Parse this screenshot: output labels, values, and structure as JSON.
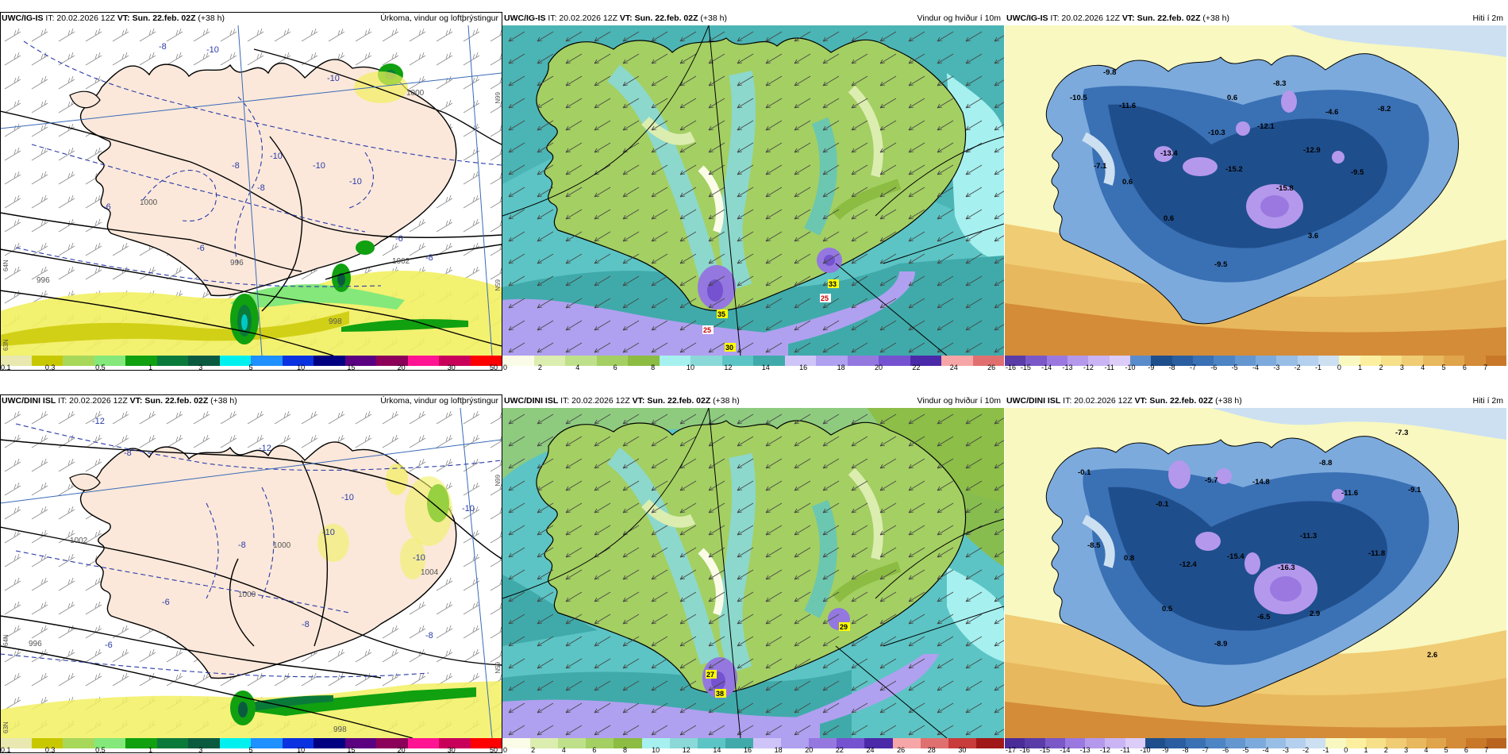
{
  "panels": [
    {
      "id": "p1",
      "left": "IG-IS",
      "type": "precip",
      "header": {
        "model": "UWC/IG-IS",
        "it": " IT: 20.02.2026 12Z ",
        "vt": "VT: Sun. 22.feb. 02Z",
        "lead": " (+38 h)",
        "title": "Úrkoma, vindur og loftþrýstingur"
      },
      "colorbar": {
        "colors": [
          "#e8e8b0",
          "#c8c800",
          "#a8d85a",
          "#84e87a",
          "#10a010",
          "#0a7a3a",
          "#0a5a40",
          "#00f0f0",
          "#1e90ff",
          "#0a32e0",
          "#000080",
          "#5a0080",
          "#8c005a",
          "#ff1493",
          "#c8005a",
          "#ff0000"
        ],
        "ticks": [
          "0.1",
          "0.3",
          "0.5",
          "1",
          "3",
          "5",
          "10",
          "15",
          "20",
          "30",
          "50"
        ],
        "tick_index": [
          0,
          1.5,
          3,
          4.5,
          6,
          7.5,
          9,
          10.5,
          12,
          13.5,
          15
        ]
      },
      "isobar_labels": [
        "1000",
        "996",
        "1002",
        "1000",
        "996",
        "998"
      ],
      "temp_labels": [
        "-8",
        "-10",
        "-10",
        "-6",
        "-8",
        "-10",
        "-10",
        "-8",
        "-6",
        "-8",
        "-10",
        "-6"
      ],
      "edge_labels": [
        "66N",
        "65N",
        "63N",
        "64N"
      ]
    },
    {
      "id": "p2",
      "type": "wind",
      "header": {
        "model": "UWC/IG-IS",
        "it": " IT: 20.02.2026 12Z ",
        "vt": "VT: Sun. 22.feb. 02Z",
        "lead": " (+38 h)",
        "title": "Vindur og hviður í 10m"
      },
      "colorbar": {
        "colors": [
          "#fbfce8",
          "#dcedb0",
          "#bfe08a",
          "#a4cf62",
          "#8cbc42",
          "#a6f0f0",
          "#8ad8d8",
          "#5cc4c4",
          "#40aaaa",
          "#cfc4f8",
          "#b0a0f0",
          "#9478e0",
          "#7452d0",
          "#4a2aa8",
          "#f6a6a6",
          "#e07070"
        ],
        "ticks": [
          "0",
          "2",
          "4",
          "6",
          "8",
          "10",
          "12",
          "14",
          "16",
          "18",
          "20",
          "22",
          "24",
          "26"
        ],
        "tick_index": [
          0,
          1.5,
          3,
          4.5,
          6,
          7.5,
          9,
          10.5,
          12,
          13.5,
          15,
          16.5,
          18,
          19.5
        ],
        "steps": 20
      },
      "gust_labels": [
        "35",
        "33",
        "25",
        "25",
        "30"
      ]
    },
    {
      "id": "p3",
      "type": "temp",
      "header": {
        "model": "UWC/IG-IS",
        "it": " IT: 20.02.2026 12Z ",
        "vt": "VT: Sun. 22.feb. 02Z",
        "lead": " (+38 h)",
        "title": "Hiti í 2m"
      },
      "colorbar": {
        "colors": [
          "#5a3ca8",
          "#7a58c8",
          "#9a78e0",
          "#b498ec",
          "#cab4f4",
          "#dcccf8",
          "#5a8ccc",
          "#1f4e8c",
          "#2a5ea0",
          "#3a70b4",
          "#4c84c4",
          "#6496d0",
          "#7caadc",
          "#98bee6",
          "#b4d0ee",
          "#cce0f2",
          "#f8f8c0",
          "#fcf0a0",
          "#f6e08a",
          "#f0cc74",
          "#e8b85e",
          "#e0a44a",
          "#d48c38",
          "#c87828"
        ],
        "ticks": [
          "-16",
          "-15",
          "-14",
          "-13",
          "-12",
          "-11",
          "-10",
          "-9",
          "-8",
          "-7",
          "-6",
          "-5",
          "-4",
          "-3",
          "-2",
          "-1",
          "0",
          "1",
          "2",
          "3",
          "4",
          "5",
          "6",
          "7"
        ],
        "tick_index": [
          0,
          1,
          2,
          3,
          4,
          5,
          6,
          7,
          8,
          9,
          10,
          11,
          12,
          13,
          14,
          15,
          16,
          17,
          18,
          19,
          20,
          21,
          22,
          23
        ],
        "steps": 24
      },
      "temp_values": [
        "-9.8",
        "-10.5",
        "-11.6",
        "0.6",
        "-8.3",
        "-10.3",
        "-12.1",
        "-4.6",
        "-8.2",
        "-13.4",
        "-12.9",
        "-7.1",
        "-15.2",
        "0.6",
        "-15.8",
        "-9.5",
        "0.6",
        "3.6",
        "-9.5"
      ]
    },
    {
      "id": "p4",
      "type": "precip",
      "header": {
        "model": "UWC/DINI ISL",
        "it": " IT: 20.02.2026 12Z ",
        "vt": "VT: Sun. 22.feb. 02Z",
        "lead": " (+38 h)",
        "title": "Úrkoma, vindur og loftþrýstingur"
      },
      "colorbar": {
        "colors": [
          "#e8e8b0",
          "#c8c800",
          "#a8d85a",
          "#84e87a",
          "#10a010",
          "#0a7a3a",
          "#0a5a40",
          "#00f0f0",
          "#1e90ff",
          "#0a32e0",
          "#000080",
          "#5a0080",
          "#8c005a",
          "#ff1493",
          "#c8005a",
          "#ff0000"
        ],
        "ticks": [
          "0.1",
          "0.3",
          "0.5",
          "1",
          "3",
          "5",
          "10",
          "15",
          "20",
          "30",
          "50"
        ],
        "tick_index": [
          0,
          1.5,
          3,
          4.5,
          6,
          7.5,
          9,
          10.5,
          12,
          13.5,
          15
        ]
      },
      "isobar_labels": [
        "1002",
        "1000",
        "1000",
        "996",
        "998",
        "1004"
      ],
      "temp_labels": [
        "-12",
        "-8",
        "-10",
        "-12",
        "-8",
        "-10",
        "-10",
        "-6",
        "-8",
        "-8",
        "-10",
        "-6"
      ],
      "edge_labels": [
        "66N",
        "65N",
        "64N",
        "63N"
      ]
    },
    {
      "id": "p5",
      "type": "wind",
      "header": {
        "model": "UWC/DINI ISL",
        "it": " IT: 20.02.2026 12Z ",
        "vt": "VT: Sun. 22.feb. 02Z",
        "lead": " (+38 h)",
        "title": "Vindur og hviður í 10m"
      },
      "colorbar": {
        "colors": [
          "#fbfce8",
          "#dcedb0",
          "#bfe08a",
          "#a4cf62",
          "#8cbc42",
          "#a6f0f0",
          "#8ad8d8",
          "#5cc4c4",
          "#40aaaa",
          "#cfc4f8",
          "#b0a0f0",
          "#9478e0",
          "#7452d0",
          "#4a2aa8",
          "#f6a6a6",
          "#e07070",
          "#c83c3c",
          "#a01818"
        ],
        "ticks": [
          "0",
          "2",
          "4",
          "6",
          "8",
          "10",
          "12",
          "14",
          "16",
          "18",
          "20",
          "22",
          "24",
          "26",
          "28",
          "30"
        ],
        "tick_index": [
          0,
          1.1,
          2.2,
          3.3,
          4.4,
          5.5,
          6.6,
          7.7,
          8.8,
          9.9,
          11,
          12.1,
          13.2,
          14.3,
          15.4,
          16.5
        ],
        "steps": 18
      },
      "gust_labels": [
        "27",
        "38",
        "29"
      ]
    },
    {
      "id": "p6",
      "type": "temp",
      "header": {
        "model": "UWC/DINI ISL",
        "it": " IT: 20.02.2026 12Z ",
        "vt": "VT: Sun. 22.feb. 02Z",
        "lead": " (+38 h)",
        "title": "Hiti í 2m"
      },
      "colorbar": {
        "colors": [
          "#4a2c98",
          "#5a3ca8",
          "#7a58c8",
          "#9a78e0",
          "#b498ec",
          "#cab4f4",
          "#dcccf8",
          "#1f4e8c",
          "#2a5ea0",
          "#3a70b4",
          "#4c84c4",
          "#6496d0",
          "#7caadc",
          "#98bee6",
          "#b4d0ee",
          "#cce0f2",
          "#f8f8c0",
          "#fcf0a0",
          "#f6e08a",
          "#f0cc74",
          "#e8b85e",
          "#e0a44a",
          "#d48c38",
          "#c87828",
          "#b86420"
        ],
        "ticks": [
          "-17",
          "-16",
          "-15",
          "-14",
          "-13",
          "-12",
          "-11",
          "-10",
          "-9",
          "-8",
          "-7",
          "-6",
          "-5",
          "-4",
          "-3",
          "-2",
          "-1",
          "0",
          "1",
          "2",
          "3",
          "4",
          "5",
          "6",
          "7"
        ],
        "tick_index": [
          0,
          1,
          2,
          3,
          4,
          5,
          6,
          7,
          8,
          9,
          10,
          11,
          12,
          13,
          14,
          15,
          16,
          17,
          18,
          19,
          20,
          21,
          22,
          23,
          24
        ],
        "steps": 25
      },
      "temp_values": [
        "-7.3",
        "-0.1",
        "-8.8",
        "-5.7",
        "-14.8",
        "-0.1",
        "-11.6",
        "-9.1",
        "-8.5",
        "0.8",
        "-11.3",
        "-12.4",
        "-15.4",
        "-16.3",
        "-11.8",
        "0.5",
        "-6.5",
        "2.9",
        "-8.9",
        "2.6"
      ]
    }
  ]
}
